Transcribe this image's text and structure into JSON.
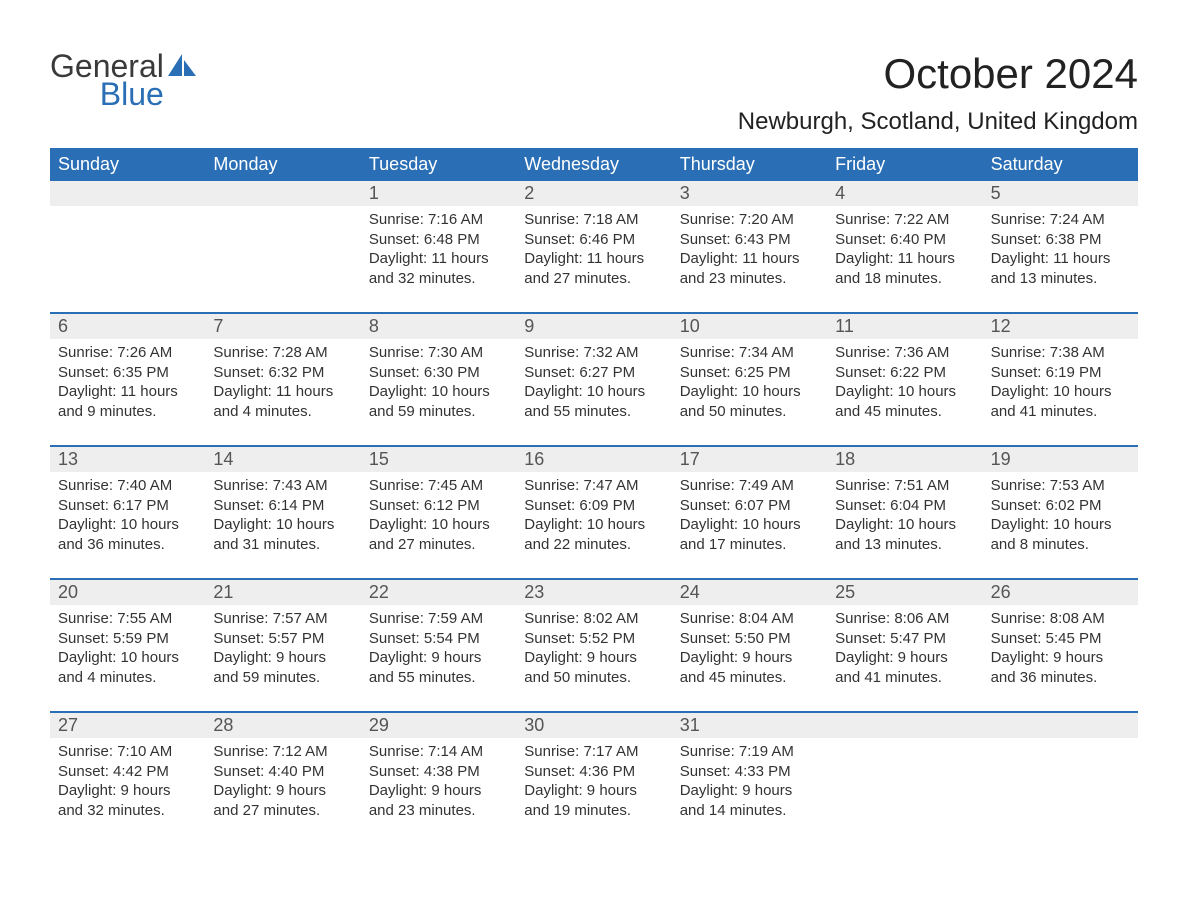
{
  "logo": {
    "line1": "General",
    "line2": "Blue",
    "icon_color": "#2a6fb5",
    "text_color_dark": "#3a3a3a",
    "text_color_blue": "#2a6fb5"
  },
  "title": "October 2024",
  "location": "Newburgh, Scotland, United Kingdom",
  "colors": {
    "header_bg": "#2a6fb5",
    "header_fg": "#ffffff",
    "daynum_bg": "#eeeeee",
    "daynum_fg": "#555555",
    "body_fg": "#333333",
    "rule": "#2a6fb5",
    "page_bg": "#ffffff"
  },
  "font": {
    "family": "Arial",
    "title_size": 42,
    "location_size": 24,
    "dow_size": 18,
    "daynum_size": 18,
    "body_size": 15
  },
  "days_of_week": [
    "Sunday",
    "Monday",
    "Tuesday",
    "Wednesday",
    "Thursday",
    "Friday",
    "Saturday"
  ],
  "weeks": [
    [
      {
        "num": "",
        "sunrise": "",
        "sunset": "",
        "daylight": ""
      },
      {
        "num": "",
        "sunrise": "",
        "sunset": "",
        "daylight": ""
      },
      {
        "num": "1",
        "sunrise": "Sunrise: 7:16 AM",
        "sunset": "Sunset: 6:48 PM",
        "daylight": "Daylight: 11 hours and 32 minutes."
      },
      {
        "num": "2",
        "sunrise": "Sunrise: 7:18 AM",
        "sunset": "Sunset: 6:46 PM",
        "daylight": "Daylight: 11 hours and 27 minutes."
      },
      {
        "num": "3",
        "sunrise": "Sunrise: 7:20 AM",
        "sunset": "Sunset: 6:43 PM",
        "daylight": "Daylight: 11 hours and 23 minutes."
      },
      {
        "num": "4",
        "sunrise": "Sunrise: 7:22 AM",
        "sunset": "Sunset: 6:40 PM",
        "daylight": "Daylight: 11 hours and 18 minutes."
      },
      {
        "num": "5",
        "sunrise": "Sunrise: 7:24 AM",
        "sunset": "Sunset: 6:38 PM",
        "daylight": "Daylight: 11 hours and 13 minutes."
      }
    ],
    [
      {
        "num": "6",
        "sunrise": "Sunrise: 7:26 AM",
        "sunset": "Sunset: 6:35 PM",
        "daylight": "Daylight: 11 hours and 9 minutes."
      },
      {
        "num": "7",
        "sunrise": "Sunrise: 7:28 AM",
        "sunset": "Sunset: 6:32 PM",
        "daylight": "Daylight: 11 hours and 4 minutes."
      },
      {
        "num": "8",
        "sunrise": "Sunrise: 7:30 AM",
        "sunset": "Sunset: 6:30 PM",
        "daylight": "Daylight: 10 hours and 59 minutes."
      },
      {
        "num": "9",
        "sunrise": "Sunrise: 7:32 AM",
        "sunset": "Sunset: 6:27 PM",
        "daylight": "Daylight: 10 hours and 55 minutes."
      },
      {
        "num": "10",
        "sunrise": "Sunrise: 7:34 AM",
        "sunset": "Sunset: 6:25 PM",
        "daylight": "Daylight: 10 hours and 50 minutes."
      },
      {
        "num": "11",
        "sunrise": "Sunrise: 7:36 AM",
        "sunset": "Sunset: 6:22 PM",
        "daylight": "Daylight: 10 hours and 45 minutes."
      },
      {
        "num": "12",
        "sunrise": "Sunrise: 7:38 AM",
        "sunset": "Sunset: 6:19 PM",
        "daylight": "Daylight: 10 hours and 41 minutes."
      }
    ],
    [
      {
        "num": "13",
        "sunrise": "Sunrise: 7:40 AM",
        "sunset": "Sunset: 6:17 PM",
        "daylight": "Daylight: 10 hours and 36 minutes."
      },
      {
        "num": "14",
        "sunrise": "Sunrise: 7:43 AM",
        "sunset": "Sunset: 6:14 PM",
        "daylight": "Daylight: 10 hours and 31 minutes."
      },
      {
        "num": "15",
        "sunrise": "Sunrise: 7:45 AM",
        "sunset": "Sunset: 6:12 PM",
        "daylight": "Daylight: 10 hours and 27 minutes."
      },
      {
        "num": "16",
        "sunrise": "Sunrise: 7:47 AM",
        "sunset": "Sunset: 6:09 PM",
        "daylight": "Daylight: 10 hours and 22 minutes."
      },
      {
        "num": "17",
        "sunrise": "Sunrise: 7:49 AM",
        "sunset": "Sunset: 6:07 PM",
        "daylight": "Daylight: 10 hours and 17 minutes."
      },
      {
        "num": "18",
        "sunrise": "Sunrise: 7:51 AM",
        "sunset": "Sunset: 6:04 PM",
        "daylight": "Daylight: 10 hours and 13 minutes."
      },
      {
        "num": "19",
        "sunrise": "Sunrise: 7:53 AM",
        "sunset": "Sunset: 6:02 PM",
        "daylight": "Daylight: 10 hours and 8 minutes."
      }
    ],
    [
      {
        "num": "20",
        "sunrise": "Sunrise: 7:55 AM",
        "sunset": "Sunset: 5:59 PM",
        "daylight": "Daylight: 10 hours and 4 minutes."
      },
      {
        "num": "21",
        "sunrise": "Sunrise: 7:57 AM",
        "sunset": "Sunset: 5:57 PM",
        "daylight": "Daylight: 9 hours and 59 minutes."
      },
      {
        "num": "22",
        "sunrise": "Sunrise: 7:59 AM",
        "sunset": "Sunset: 5:54 PM",
        "daylight": "Daylight: 9 hours and 55 minutes."
      },
      {
        "num": "23",
        "sunrise": "Sunrise: 8:02 AM",
        "sunset": "Sunset: 5:52 PM",
        "daylight": "Daylight: 9 hours and 50 minutes."
      },
      {
        "num": "24",
        "sunrise": "Sunrise: 8:04 AM",
        "sunset": "Sunset: 5:50 PM",
        "daylight": "Daylight: 9 hours and 45 minutes."
      },
      {
        "num": "25",
        "sunrise": "Sunrise: 8:06 AM",
        "sunset": "Sunset: 5:47 PM",
        "daylight": "Daylight: 9 hours and 41 minutes."
      },
      {
        "num": "26",
        "sunrise": "Sunrise: 8:08 AM",
        "sunset": "Sunset: 5:45 PM",
        "daylight": "Daylight: 9 hours and 36 minutes."
      }
    ],
    [
      {
        "num": "27",
        "sunrise": "Sunrise: 7:10 AM",
        "sunset": "Sunset: 4:42 PM",
        "daylight": "Daylight: 9 hours and 32 minutes."
      },
      {
        "num": "28",
        "sunrise": "Sunrise: 7:12 AM",
        "sunset": "Sunset: 4:40 PM",
        "daylight": "Daylight: 9 hours and 27 minutes."
      },
      {
        "num": "29",
        "sunrise": "Sunrise: 7:14 AM",
        "sunset": "Sunset: 4:38 PM",
        "daylight": "Daylight: 9 hours and 23 minutes."
      },
      {
        "num": "30",
        "sunrise": "Sunrise: 7:17 AM",
        "sunset": "Sunset: 4:36 PM",
        "daylight": "Daylight: 9 hours and 19 minutes."
      },
      {
        "num": "31",
        "sunrise": "Sunrise: 7:19 AM",
        "sunset": "Sunset: 4:33 PM",
        "daylight": "Daylight: 9 hours and 14 minutes."
      },
      {
        "num": "",
        "sunrise": "",
        "sunset": "",
        "daylight": ""
      },
      {
        "num": "",
        "sunrise": "",
        "sunset": "",
        "daylight": ""
      }
    ]
  ]
}
